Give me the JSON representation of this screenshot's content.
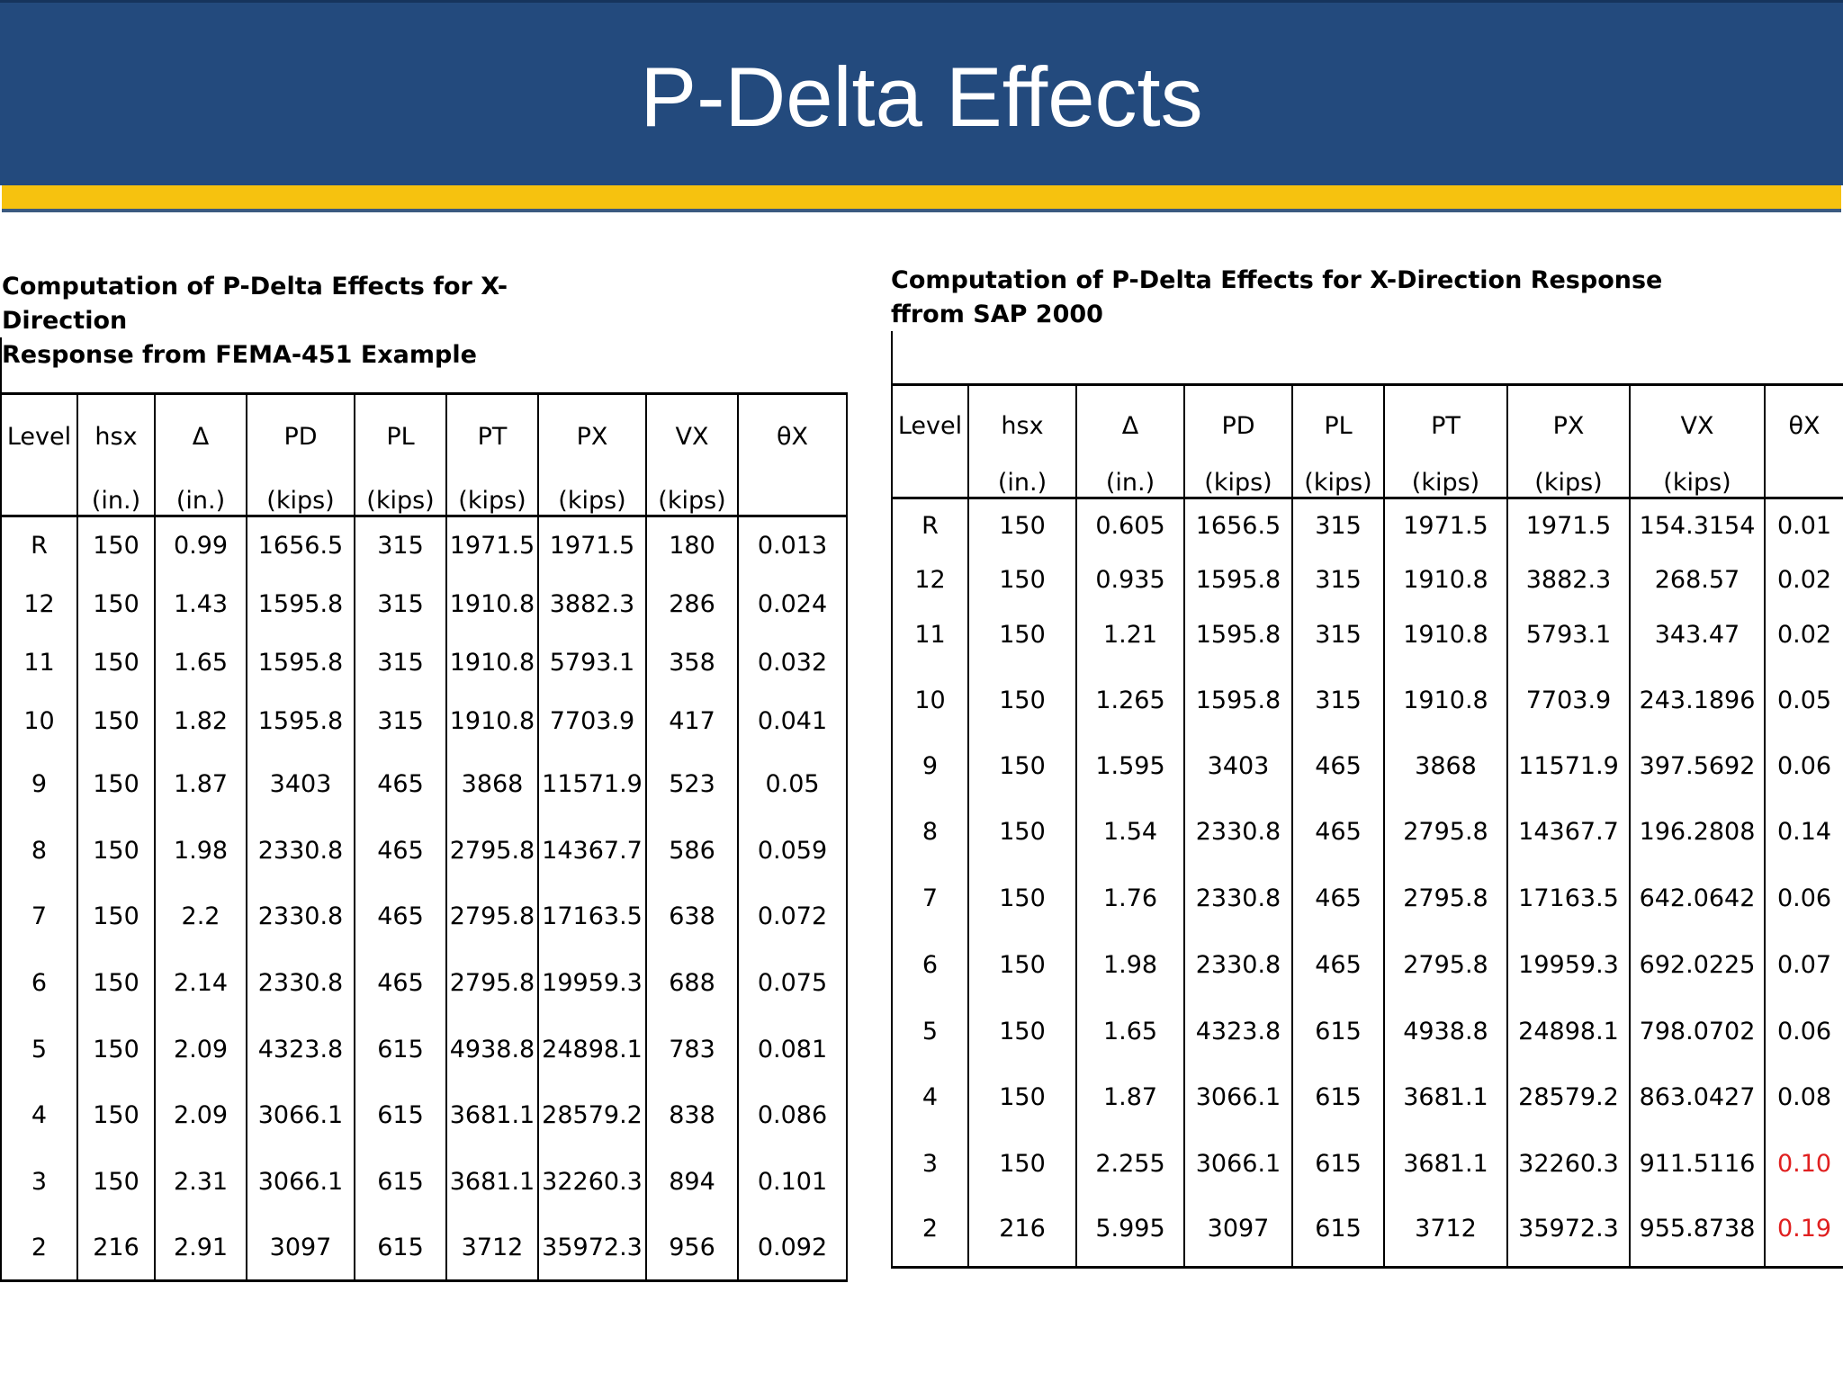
{
  "title": "P-Delta Effects",
  "left_table": {
    "caption": "Computation of P-Delta Effects for X-Direction\nResponse from FEMA-451 Example",
    "headers": [
      {
        "name": "Level",
        "unit": ""
      },
      {
        "name": "hsx",
        "unit": "(in.)"
      },
      {
        "name": "Δ",
        "unit": "(in.)"
      },
      {
        "name": "PD",
        "unit": "(kips)"
      },
      {
        "name": "PL",
        "unit": "(kips)"
      },
      {
        "name": "PT",
        "unit": "(kips)"
      },
      {
        "name": "PX",
        "unit": "(kips)"
      },
      {
        "name": "VX",
        "unit": "(kips)"
      },
      {
        "name": "θX",
        "unit": ""
      }
    ],
    "rows": [
      [
        "R",
        "150",
        "0.99",
        "1656.5",
        "315",
        "1971.5",
        "1971.5",
        "180",
        "0.013"
      ],
      [
        "12",
        "150",
        "1.43",
        "1595.8",
        "315",
        "1910.8",
        "3882.3",
        "286",
        "0.024"
      ],
      [
        "11",
        "150",
        "1.65",
        "1595.8",
        "315",
        "1910.8",
        "5793.1",
        "358",
        "0.032"
      ],
      [
        "10",
        "150",
        "1.82",
        "1595.8",
        "315",
        "1910.8",
        "7703.9",
        "417",
        "0.041"
      ],
      [
        "9",
        "150",
        "1.87",
        "3403",
        "465",
        "3868",
        "11571.9",
        "523",
        "0.05"
      ],
      [
        "8",
        "150",
        "1.98",
        "2330.8",
        "465",
        "2795.8",
        "14367.7",
        "586",
        "0.059"
      ],
      [
        "7",
        "150",
        "2.2",
        "2330.8",
        "465",
        "2795.8",
        "17163.5",
        "638",
        "0.072"
      ],
      [
        "6",
        "150",
        "2.14",
        "2330.8",
        "465",
        "2795.8",
        "19959.3",
        "688",
        "0.075"
      ],
      [
        "5",
        "150",
        "2.09",
        "4323.8",
        "615",
        "4938.8",
        "24898.1",
        "783",
        "0.081"
      ],
      [
        "4",
        "150",
        "2.09",
        "3066.1",
        "615",
        "3681.1",
        "28579.2",
        "838",
        "0.086"
      ],
      [
        "3",
        "150",
        "2.31",
        "3066.1",
        "615",
        "3681.1",
        "32260.3",
        "894",
        "0.101"
      ],
      [
        "2",
        "216",
        "2.91",
        "3097",
        "615",
        "3712",
        "35972.3",
        "956",
        "0.092"
      ]
    ]
  },
  "right_table": {
    "caption": "Computation of P-Delta Effects for X-Direction Response\nffrom SAP 2000",
    "headers": [
      {
        "name": "Level",
        "unit": ""
      },
      {
        "name": "hsx",
        "unit": "(in.)"
      },
      {
        "name": "Δ",
        "unit": "(in.)"
      },
      {
        "name": "PD",
        "unit": "(kips)"
      },
      {
        "name": "PL",
        "unit": "(kips)"
      },
      {
        "name": "PT",
        "unit": "(kips)"
      },
      {
        "name": "PX",
        "unit": "(kips)"
      },
      {
        "name": "VX",
        "unit": "(kips)"
      },
      {
        "name": "θX",
        "unit": ""
      }
    ],
    "highlight_color": "#e02020",
    "highlighted_rows": [
      10,
      11
    ],
    "rows": [
      [
        "R",
        "150",
        "0.605",
        "1656.5",
        "315",
        "1971.5",
        "1971.5",
        "154.3154",
        "0.01"
      ],
      [
        "12",
        "150",
        "0.935",
        "1595.8",
        "315",
        "1910.8",
        "3882.3",
        "268.57",
        "0.02"
      ],
      [
        "11",
        "150",
        "1.21",
        "1595.8",
        "315",
        "1910.8",
        "5793.1",
        "343.47",
        "0.02"
      ],
      [
        "10",
        "150",
        "1.265",
        "1595.8",
        "315",
        "1910.8",
        "7703.9",
        "243.1896",
        "0.05"
      ],
      [
        "9",
        "150",
        "1.595",
        "3403",
        "465",
        "3868",
        "11571.9",
        "397.5692",
        "0.06"
      ],
      [
        "8",
        "150",
        "1.54",
        "2330.8",
        "465",
        "2795.8",
        "14367.7",
        "196.2808",
        "0.14"
      ],
      [
        "7",
        "150",
        "1.76",
        "2330.8",
        "465",
        "2795.8",
        "17163.5",
        "642.0642",
        "0.06"
      ],
      [
        "6",
        "150",
        "1.98",
        "2330.8",
        "465",
        "2795.8",
        "19959.3",
        "692.0225",
        "0.07"
      ],
      [
        "5",
        "150",
        "1.65",
        "4323.8",
        "615",
        "4938.8",
        "24898.1",
        "798.0702",
        "0.06"
      ],
      [
        "4",
        "150",
        "1.87",
        "3066.1",
        "615",
        "3681.1",
        "28579.2",
        "863.0427",
        "0.08"
      ],
      [
        "3",
        "150",
        "2.255",
        "3066.1",
        "615",
        "3681.1",
        "32260.3",
        "911.5116",
        "0.10"
      ],
      [
        "2",
        "216",
        "5.995",
        "3097",
        "615",
        "3712",
        "35972.3",
        "955.8738",
        "0.19"
      ]
    ]
  }
}
